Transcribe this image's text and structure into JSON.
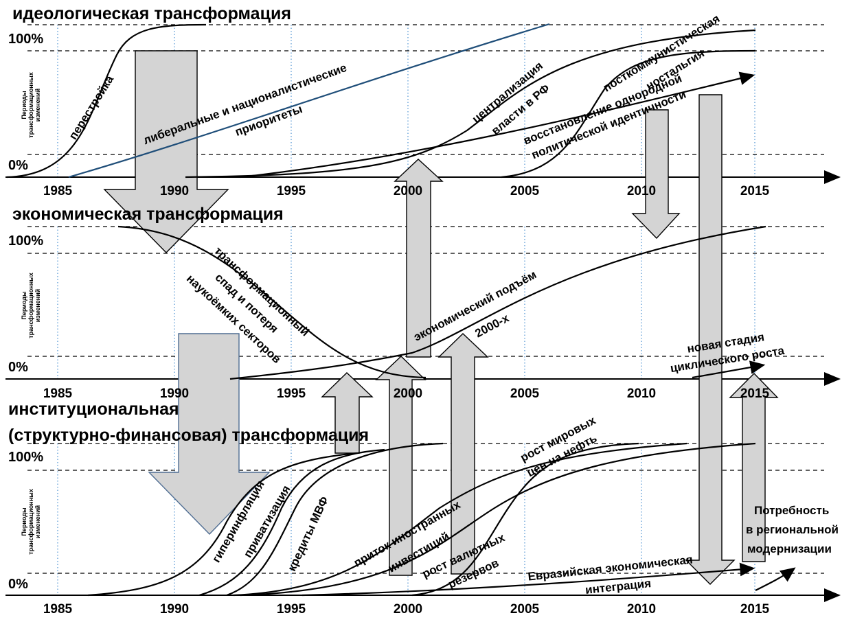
{
  "panels": {
    "ideological": {
      "title": "идеологическая трансформация",
      "y_top": "100%",
      "y_bottom": "0%",
      "y_label": "Периоды трансформационных изменений",
      "x_ticks": [
        "1985",
        "1990",
        "1995",
        "2000",
        "2005",
        "2010",
        "2015"
      ],
      "labels": {
        "perestroika": "перестройка",
        "liberal_1": "либеральные и националистические",
        "liberal_2": "приоритеты",
        "central_1": "централизация",
        "central_2": "власти в РФ",
        "nostalgia_1": "посткоммунистическая",
        "nostalgia_2": "ностальгия",
        "identity_1": "восстановление однородной",
        "identity_2": "политической идентичности"
      }
    },
    "economic": {
      "title": "экономическая трансформация",
      "y_top": "100%",
      "y_bottom": "0%",
      "y_label": "Периоды трансформационных изменений",
      "x_ticks": [
        "1985",
        "1990",
        "1995",
        "2000",
        "2005",
        "2010",
        "2015"
      ],
      "labels": {
        "decline_1": "трансформационный",
        "decline_2": "спад и потеря",
        "decline_3": "наукоёмких секторов",
        "rise_1": "экономический подъём",
        "rise_2": "2000-х",
        "cycle_1": "новая стадия",
        "cycle_2": "циклического роста"
      }
    },
    "institutional": {
      "title_1": "институциональная",
      "title_2": "(структурно-финансовая) трансформация",
      "y_top": "100%",
      "y_bottom": "0%",
      "y_label": "Периоды трансформационных изменений",
      "x_ticks": [
        "1985",
        "1990",
        "1995",
        "2000",
        "2005",
        "2010",
        "2015"
      ],
      "labels": {
        "hyperinflation": "гиперинфляция",
        "privatization": "приватизация",
        "imf": "кредиты МВФ",
        "fdi_1": "приток иностранных",
        "fdi_2": "инвестиций",
        "reserves_1": "рост валютных",
        "reserves_2": "резервов",
        "oil_1": "рост мировых",
        "oil_2": "цен на нефть",
        "eeu_1": "Евразийская экономическая",
        "eeu_2": "интеграция",
        "need_1": "Потребность",
        "need_2": "в региональной",
        "need_3": "модернизации"
      }
    }
  },
  "colors": {
    "axis": "#000000",
    "grid_dash": "#000000",
    "year_dots": "#5b9bd5",
    "liberal_curve": "#1f4e79",
    "arrow_fill": "#d4d4d4",
    "arrow_stroke": "#000000",
    "outlined_arrow_stroke": "#4f6d92"
  }
}
